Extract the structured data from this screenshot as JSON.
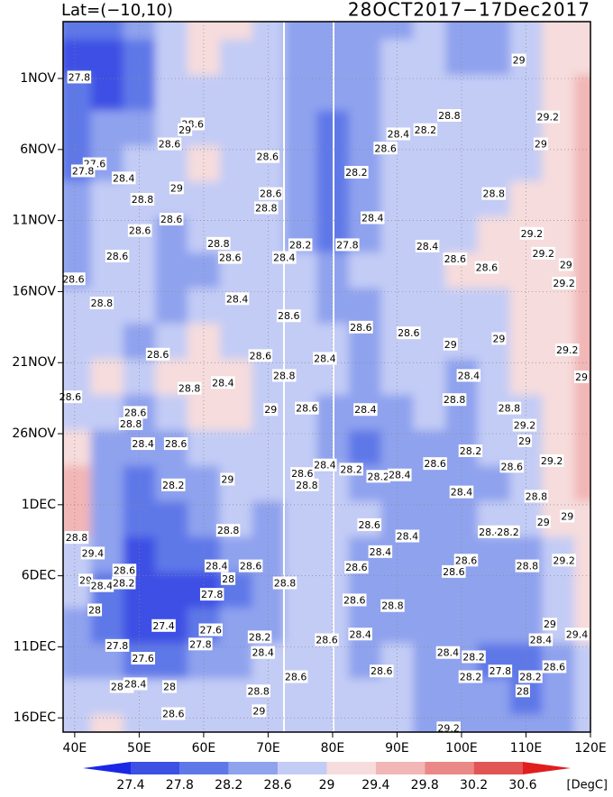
{
  "chart_data": {
    "type": "hovmoller",
    "title": "Lat=(−10,10)",
    "subtitle": "28OCT2017−17Dec2017",
    "xlim": [
      38.2,
      120
    ],
    "ylim": [
      0,
      50
    ],
    "grid": true,
    "xticks": [
      {
        "value": 40,
        "label": "40E"
      },
      {
        "value": 50,
        "label": "50E"
      },
      {
        "value": 60,
        "label": "60E"
      },
      {
        "value": 70,
        "label": "70E"
      },
      {
        "value": 80,
        "label": "80E"
      },
      {
        "value": 90,
        "label": "90E"
      },
      {
        "value": 100,
        "label": "100E"
      },
      {
        "value": 110,
        "label": "110E"
      },
      {
        "value": 120,
        "label": "120E"
      }
    ],
    "yticks": [
      {
        "value": 4,
        "label": "1NOV"
      },
      {
        "value": 9,
        "label": "6NOV"
      },
      {
        "value": 14,
        "label": "11NOV"
      },
      {
        "value": 19,
        "label": "16NOV"
      },
      {
        "value": 24,
        "label": "21NOV"
      },
      {
        "value": 29,
        "label": "26NOV"
      },
      {
        "value": 34,
        "label": "1DEC"
      },
      {
        "value": 39,
        "label": "6DEC"
      },
      {
        "value": 44,
        "label": "11DEC"
      },
      {
        "value": 49,
        "label": "16DEC"
      }
    ],
    "colorbar": {
      "levels": [
        27.4,
        27.8,
        28.2,
        28.6,
        29,
        29.4,
        29.8,
        30.2,
        30.6
      ],
      "colors": [
        "#1a28e6",
        "#3c50e4",
        "#5f78e8",
        "#8fa2ee",
        "#c3ccf5",
        "#f6dcdc",
        "#f2b6b6",
        "#ea8888",
        "#e25555",
        "#e01e1e"
      ],
      "unit": "[DegC]"
    },
    "field": {
      "x": [
        40,
        45,
        50,
        55,
        60,
        65,
        70,
        75,
        80,
        85,
        90,
        95,
        100,
        105,
        110,
        115,
        120
      ],
      "y": [
        0,
        2.5,
        5,
        7.5,
        10,
        12.5,
        15,
        17.5,
        20,
        22.5,
        25,
        27.5,
        30,
        32.5,
        35,
        37.5,
        40,
        42.5,
        45,
        47.5,
        50
      ],
      "values": [
        [
          28.0,
          27.8,
          28.2,
          28.6,
          29.1,
          29.0,
          28.8,
          28.4,
          28.2,
          28.4,
          28.4,
          28.6,
          28.4,
          28.4,
          28.6,
          29.0,
          29.0
        ],
        [
          27.6,
          27.6,
          28.0,
          28.6,
          29.1,
          28.8,
          28.6,
          28.3,
          28.2,
          28.4,
          28.6,
          28.6,
          28.4,
          28.4,
          28.8,
          29.0,
          29.2
        ],
        [
          27.8,
          27.6,
          28.0,
          28.6,
          28.8,
          28.6,
          28.6,
          28.4,
          28.2,
          28.4,
          28.6,
          28.6,
          28.6,
          28.6,
          28.8,
          29.2,
          29.6
        ],
        [
          27.8,
          28.2,
          28.4,
          28.6,
          28.8,
          28.8,
          28.8,
          28.4,
          28.0,
          28.4,
          28.6,
          28.6,
          28.6,
          28.6,
          28.8,
          29.2,
          29.6
        ],
        [
          28.0,
          28.4,
          28.6,
          28.6,
          29.0,
          28.8,
          28.8,
          28.2,
          27.8,
          28.2,
          28.6,
          28.6,
          28.6,
          28.6,
          28.8,
          29.2,
          29.6
        ],
        [
          28.2,
          28.6,
          28.6,
          28.6,
          28.8,
          28.8,
          28.6,
          28.4,
          27.8,
          28.2,
          28.6,
          28.6,
          28.6,
          28.8,
          29.0,
          29.2,
          29.4
        ],
        [
          28.2,
          28.6,
          28.6,
          28.4,
          28.6,
          28.6,
          28.6,
          28.4,
          28.0,
          28.4,
          28.6,
          28.8,
          28.8,
          29.0,
          29.0,
          29.2,
          29.4
        ],
        [
          28.4,
          28.6,
          28.6,
          28.4,
          28.4,
          28.6,
          28.6,
          28.6,
          28.2,
          28.6,
          28.6,
          28.8,
          29.0,
          29.0,
          29.0,
          29.2,
          29.6
        ],
        [
          28.6,
          28.8,
          28.6,
          28.4,
          28.6,
          28.6,
          28.6,
          28.6,
          28.4,
          28.4,
          28.6,
          28.8,
          28.8,
          28.8,
          29.0,
          29.2,
          29.6
        ],
        [
          28.6,
          28.6,
          28.4,
          28.8,
          29.0,
          28.8,
          28.6,
          28.6,
          28.6,
          28.4,
          28.6,
          28.8,
          28.8,
          28.8,
          29.0,
          29.2,
          29.4
        ],
        [
          28.8,
          29.0,
          28.8,
          29.0,
          29.1,
          29.0,
          28.8,
          28.6,
          28.6,
          28.4,
          28.6,
          28.6,
          28.4,
          28.8,
          29.0,
          29.2,
          29.4
        ],
        [
          28.8,
          28.6,
          28.4,
          28.6,
          29.0,
          29.0,
          28.8,
          28.6,
          28.4,
          28.2,
          28.4,
          28.6,
          28.4,
          28.6,
          28.8,
          29.2,
          29.4
        ],
        [
          29.2,
          28.4,
          28.2,
          28.2,
          28.6,
          28.8,
          28.6,
          28.6,
          28.4,
          28.0,
          28.2,
          28.4,
          28.4,
          28.6,
          28.8,
          29.2,
          29.4
        ],
        [
          29.6,
          28.2,
          28.0,
          28.2,
          28.4,
          28.6,
          28.6,
          28.6,
          28.6,
          28.4,
          28.4,
          28.4,
          28.4,
          28.4,
          28.8,
          29.0,
          29.4
        ],
        [
          29.4,
          28.4,
          27.8,
          28.0,
          28.4,
          28.6,
          28.4,
          28.6,
          28.6,
          28.6,
          28.4,
          28.4,
          28.4,
          28.6,
          28.6,
          29.0,
          29.2
        ],
        [
          28.8,
          28.4,
          27.6,
          27.8,
          27.8,
          28.2,
          28.4,
          28.6,
          28.6,
          28.4,
          28.4,
          28.4,
          28.4,
          28.4,
          28.4,
          28.8,
          29.2
        ],
        [
          28.6,
          27.8,
          27.4,
          27.6,
          27.6,
          28.0,
          28.4,
          28.6,
          28.6,
          28.4,
          28.4,
          28.2,
          28.4,
          28.2,
          28.4,
          28.6,
          29.2
        ],
        [
          28.4,
          27.8,
          27.4,
          27.6,
          27.8,
          28.2,
          28.4,
          28.6,
          28.6,
          28.4,
          28.4,
          28.4,
          28.2,
          28.2,
          28.2,
          28.6,
          29.0
        ],
        [
          28.4,
          28.4,
          27.8,
          28.0,
          28.4,
          28.4,
          28.6,
          28.6,
          28.6,
          28.4,
          28.6,
          28.4,
          28.2,
          28.0,
          28.0,
          28.4,
          28.8
        ],
        [
          28.6,
          28.6,
          28.6,
          28.6,
          28.6,
          28.6,
          28.6,
          28.8,
          28.8,
          28.6,
          28.6,
          28.4,
          28.4,
          28.2,
          28.0,
          28.4,
          28.6
        ],
        [
          28.8,
          29.2,
          28.6,
          28.6,
          28.6,
          28.6,
          28.8,
          28.8,
          28.6,
          28.6,
          28.6,
          28.4,
          28.4,
          28.2,
          28.2,
          28.4,
          28.6
        ]
      ]
    },
    "contour_labels": [
      {
        "x": 40.7,
        "y": 3.9,
        "value": 27.8
      },
      {
        "x": 58.3,
        "y": 7.2,
        "value": 28.6
      },
      {
        "x": 57.1,
        "y": 7.6,
        "value": 29
      },
      {
        "x": 54.7,
        "y": 8.6,
        "value": 28.6
      },
      {
        "x": 69.9,
        "y": 9.5,
        "value": 28.6
      },
      {
        "x": 43.1,
        "y": 10.0,
        "value": 27.6
      },
      {
        "x": 41.3,
        "y": 10.5,
        "value": 27.8
      },
      {
        "x": 47.6,
        "y": 11.0,
        "value": 28.4
      },
      {
        "x": 55.8,
        "y": 11.7,
        "value": 29
      },
      {
        "x": 50.5,
        "y": 12.5,
        "value": 28.8
      },
      {
        "x": 70.4,
        "y": 12.1,
        "value": 28.6
      },
      {
        "x": 69.7,
        "y": 13.1,
        "value": 28.8
      },
      {
        "x": 55.0,
        "y": 13.9,
        "value": 28.6
      },
      {
        "x": 50.1,
        "y": 14.7,
        "value": 28.6
      },
      {
        "x": 62.3,
        "y": 15.6,
        "value": 28.8
      },
      {
        "x": 75.0,
        "y": 15.7,
        "value": 28.2
      },
      {
        "x": 82.3,
        "y": 15.7,
        "value": 27.8
      },
      {
        "x": 64.1,
        "y": 16.6,
        "value": 28.6
      },
      {
        "x": 72.5,
        "y": 16.6,
        "value": 28.4
      },
      {
        "x": 46.6,
        "y": 16.5,
        "value": 28.6
      },
      {
        "x": 86.2,
        "y": 13.8,
        "value": 28.4
      },
      {
        "x": 83.7,
        "y": 10.6,
        "value": 28.2
      },
      {
        "x": 88.2,
        "y": 8.9,
        "value": 28.6
      },
      {
        "x": 90.2,
        "y": 7.9,
        "value": 28.4
      },
      {
        "x": 94.4,
        "y": 7.6,
        "value": 28.2
      },
      {
        "x": 98.1,
        "y": 6.6,
        "value": 28.8
      },
      {
        "x": 105.0,
        "y": 12.1,
        "value": 28.8
      },
      {
        "x": 94.7,
        "y": 15.8,
        "value": 28.4
      },
      {
        "x": 99.0,
        "y": 16.7,
        "value": 28.6
      },
      {
        "x": 103.9,
        "y": 17.3,
        "value": 28.6
      },
      {
        "x": 108.9,
        "y": 2.7,
        "value": 29
      },
      {
        "x": 112.3,
        "y": 8.6,
        "value": 29
      },
      {
        "x": 113.4,
        "y": 6.7,
        "value": 29.2
      },
      {
        "x": 110.9,
        "y": 14.9,
        "value": 29.2
      },
      {
        "x": 112.7,
        "y": 16.3,
        "value": 29.2
      },
      {
        "x": 116.2,
        "y": 17.1,
        "value": 29
      },
      {
        "x": 115.9,
        "y": 18.4,
        "value": 29.2
      },
      {
        "x": 39.8,
        "y": 18.1,
        "value": 28.6
      },
      {
        "x": 44.2,
        "y": 19.8,
        "value": 28.8
      },
      {
        "x": 65.2,
        "y": 19.5,
        "value": 28.4
      },
      {
        "x": 73.2,
        "y": 20.7,
        "value": 28.6
      },
      {
        "x": 84.4,
        "y": 21.5,
        "value": 28.6
      },
      {
        "x": 91.8,
        "y": 21.9,
        "value": 28.6
      },
      {
        "x": 98.3,
        "y": 22.7,
        "value": 29
      },
      {
        "x": 105.8,
        "y": 22.3,
        "value": 29
      },
      {
        "x": 116.4,
        "y": 23.1,
        "value": 29.2
      },
      {
        "x": 118.6,
        "y": 25.0,
        "value": 29
      },
      {
        "x": 52.9,
        "y": 23.4,
        "value": 28.6
      },
      {
        "x": 68.8,
        "y": 23.5,
        "value": 28.6
      },
      {
        "x": 78.8,
        "y": 23.7,
        "value": 28.4
      },
      {
        "x": 72.5,
        "y": 24.9,
        "value": 28.8
      },
      {
        "x": 57.8,
        "y": 25.8,
        "value": 28.8
      },
      {
        "x": 63.0,
        "y": 25.4,
        "value": 28.4
      },
      {
        "x": 101.1,
        "y": 24.9,
        "value": 28.4
      },
      {
        "x": 98.9,
        "y": 26.6,
        "value": 28.8
      },
      {
        "x": 39.3,
        "y": 26.4,
        "value": 28.6
      },
      {
        "x": 49.4,
        "y": 27.5,
        "value": 28.6
      },
      {
        "x": 70.4,
        "y": 27.3,
        "value": 29
      },
      {
        "x": 76.0,
        "y": 27.2,
        "value": 28.6
      },
      {
        "x": 85.1,
        "y": 27.3,
        "value": 28.4
      },
      {
        "x": 107.4,
        "y": 27.2,
        "value": 28.8
      },
      {
        "x": 48.7,
        "y": 28.3,
        "value": 28.8
      },
      {
        "x": 109.8,
        "y": 28.4,
        "value": 29.2
      },
      {
        "x": 50.6,
        "y": 29.7,
        "value": 28.4
      },
      {
        "x": 55.7,
        "y": 29.7,
        "value": 28.6
      },
      {
        "x": 109.8,
        "y": 29.5,
        "value": 29
      },
      {
        "x": 101.4,
        "y": 30.2,
        "value": 28.2
      },
      {
        "x": 95.9,
        "y": 31.1,
        "value": 28.6
      },
      {
        "x": 114.0,
        "y": 30.9,
        "value": 29.2
      },
      {
        "x": 78.8,
        "y": 31.2,
        "value": 28.4
      },
      {
        "x": 82.9,
        "y": 31.5,
        "value": 28.2
      },
      {
        "x": 87.1,
        "y": 32.0,
        "value": 28.2
      },
      {
        "x": 90.4,
        "y": 31.9,
        "value": 28.4
      },
      {
        "x": 107.8,
        "y": 31.3,
        "value": 28.6
      },
      {
        "x": 63.7,
        "y": 32.2,
        "value": 29
      },
      {
        "x": 55.3,
        "y": 32.6,
        "value": 28.2
      },
      {
        "x": 75.3,
        "y": 31.8,
        "value": 28.6
      },
      {
        "x": 76.0,
        "y": 32.6,
        "value": 28.8
      },
      {
        "x": 100.0,
        "y": 33.1,
        "value": 28.4
      },
      {
        "x": 111.6,
        "y": 33.4,
        "value": 28.8
      },
      {
        "x": 63.8,
        "y": 35.8,
        "value": 28.8
      },
      {
        "x": 112.7,
        "y": 35.2,
        "value": 29
      },
      {
        "x": 116.4,
        "y": 34.8,
        "value": 29
      },
      {
        "x": 85.7,
        "y": 35.4,
        "value": 28.6
      },
      {
        "x": 91.6,
        "y": 36.2,
        "value": 28.4
      },
      {
        "x": 104.4,
        "y": 35.9,
        "value": 28.4
      },
      {
        "x": 107.2,
        "y": 35.9,
        "value": 28.2
      },
      {
        "x": 40.3,
        "y": 36.3,
        "value": 28.8
      },
      {
        "x": 42.8,
        "y": 37.4,
        "value": 29.4
      },
      {
        "x": 87.4,
        "y": 37.3,
        "value": 28.4
      },
      {
        "x": 100.7,
        "y": 37.9,
        "value": 28.6
      },
      {
        "x": 110.2,
        "y": 38.3,
        "value": 28.8
      },
      {
        "x": 115.9,
        "y": 37.9,
        "value": 29.2
      },
      {
        "x": 47.7,
        "y": 38.6,
        "value": 28.6
      },
      {
        "x": 62.0,
        "y": 38.3,
        "value": 28.4
      },
      {
        "x": 41.7,
        "y": 39.3,
        "value": 29
      },
      {
        "x": 44.2,
        "y": 39.7,
        "value": 28.4
      },
      {
        "x": 47.6,
        "y": 39.5,
        "value": 28.2
      },
      {
        "x": 67.3,
        "y": 38.3,
        "value": 28.6
      },
      {
        "x": 63.8,
        "y": 39.2,
        "value": 28
      },
      {
        "x": 83.7,
        "y": 38.4,
        "value": 28.6
      },
      {
        "x": 98.8,
        "y": 38.7,
        "value": 28.6
      },
      {
        "x": 72.6,
        "y": 39.5,
        "value": 28.8
      },
      {
        "x": 61.3,
        "y": 40.3,
        "value": 27.8
      },
      {
        "x": 43.1,
        "y": 41.4,
        "value": 28
      },
      {
        "x": 83.4,
        "y": 40.7,
        "value": 28.6
      },
      {
        "x": 89.3,
        "y": 41.1,
        "value": 28.8
      },
      {
        "x": 53.8,
        "y": 42.5,
        "value": 27.4
      },
      {
        "x": 61.1,
        "y": 42.8,
        "value": 27.6
      },
      {
        "x": 113.7,
        "y": 42.4,
        "value": 29
      },
      {
        "x": 68.7,
        "y": 43.3,
        "value": 28.2
      },
      {
        "x": 84.3,
        "y": 43.1,
        "value": 28.4
      },
      {
        "x": 79.1,
        "y": 43.5,
        "value": 28.6
      },
      {
        "x": 112.3,
        "y": 43.5,
        "value": 28.4
      },
      {
        "x": 117.9,
        "y": 43.1,
        "value": 29.4
      },
      {
        "x": 46.6,
        "y": 43.9,
        "value": 27.8
      },
      {
        "x": 59.5,
        "y": 43.8,
        "value": 27.8
      },
      {
        "x": 69.2,
        "y": 44.4,
        "value": 28.4
      },
      {
        "x": 97.9,
        "y": 44.4,
        "value": 28.4
      },
      {
        "x": 101.9,
        "y": 44.7,
        "value": 28.2
      },
      {
        "x": 50.6,
        "y": 44.8,
        "value": 27.6
      },
      {
        "x": 87.6,
        "y": 45.7,
        "value": 28.6
      },
      {
        "x": 114.4,
        "y": 45.4,
        "value": 28.6
      },
      {
        "x": 74.3,
        "y": 46.1,
        "value": 28.6
      },
      {
        "x": 101.4,
        "y": 46.1,
        "value": 28.2
      },
      {
        "x": 106.0,
        "y": 45.7,
        "value": 27.8
      },
      {
        "x": 110.7,
        "y": 46.1,
        "value": 28.2
      },
      {
        "x": 47.3,
        "y": 46.8,
        "value": 28.8
      },
      {
        "x": 49.4,
        "y": 46.6,
        "value": 28.4
      },
      {
        "x": 54.7,
        "y": 46.8,
        "value": 28
      },
      {
        "x": 109.5,
        "y": 47.1,
        "value": 28
      },
      {
        "x": 68.5,
        "y": 47.1,
        "value": 28.8
      },
      {
        "x": 68.6,
        "y": 48.5,
        "value": 29
      },
      {
        "x": 55.3,
        "y": 48.7,
        "value": 28.6
      },
      {
        "x": 98.0,
        "y": 49.7,
        "value": 29.2
      }
    ]
  }
}
